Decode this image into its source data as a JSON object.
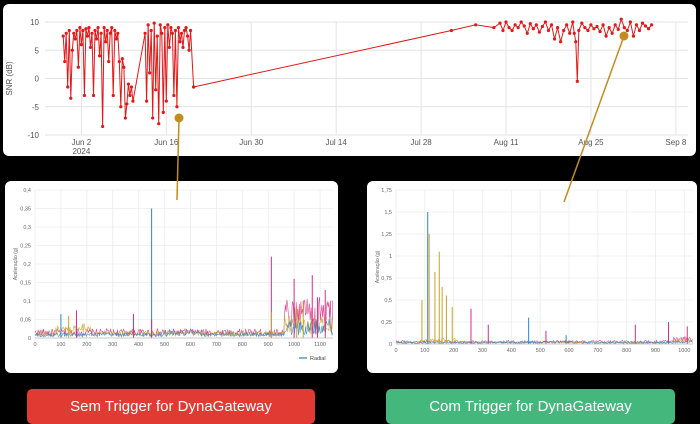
{
  "chart_data": [
    {
      "id": "snr",
      "type": "line",
      "ylabel": "SNR (dB)",
      "ylim": [
        -10,
        10
      ],
      "yticks": [
        "10",
        "5",
        "0",
        "-5",
        "-10"
      ],
      "ytick_values": [
        10,
        5,
        0,
        -5,
        -10
      ],
      "xticks": [
        {
          "label": "Jun 2",
          "sub": "2024",
          "date": "2024-06-02"
        },
        {
          "label": "Jun 16",
          "sub": "",
          "date": "2024-06-16"
        },
        {
          "label": "Jun 30",
          "sub": "",
          "date": "2024-06-30"
        },
        {
          "label": "Jul 14",
          "sub": "",
          "date": "2024-07-14"
        },
        {
          "label": "Jul 28",
          "sub": "",
          "date": "2024-07-28"
        },
        {
          "label": "Aug 11",
          "sub": "",
          "date": "2024-08-11"
        },
        {
          "label": "Aug 25",
          "sub": "",
          "date": "2024-08-25"
        },
        {
          "label": "Sep 8",
          "sub": "",
          "date": "2024-09-08"
        }
      ],
      "xlim": [
        "2024-05-27",
        "2024-09-10"
      ],
      "grid": true,
      "color": "#e11919",
      "series": [
        {
          "points": [
            [
              "2024-05-30T00:00",
              7.5
            ],
            [
              "2024-05-30T06:00",
              3
            ],
            [
              "2024-05-30T12:00",
              8
            ],
            [
              "2024-05-30T18:00",
              -1.5
            ],
            [
              "2024-05-31T00:00",
              8.5
            ],
            [
              "2024-05-31T06:00",
              -3.5
            ],
            [
              "2024-05-31T12:00",
              5
            ],
            [
              "2024-05-31T18:00",
              8
            ],
            [
              "2024-06-01T00:00",
              7
            ],
            [
              "2024-06-01T06:00",
              8.5
            ],
            [
              "2024-06-01T12:00",
              2
            ],
            [
              "2024-06-01T18:00",
              9
            ],
            [
              "2024-06-02T00:00",
              6
            ],
            [
              "2024-06-02T06:00",
              8.5
            ],
            [
              "2024-06-02T12:00",
              -3
            ],
            [
              "2024-06-02T18:00",
              8.8
            ],
            [
              "2024-06-03T00:00",
              7.5
            ],
            [
              "2024-06-03T06:00",
              9
            ],
            [
              "2024-06-03T12:00",
              5.5
            ],
            [
              "2024-06-03T18:00",
              8
            ],
            [
              "2024-06-04T00:00",
              -3
            ],
            [
              "2024-06-04T06:00",
              8.5
            ],
            [
              "2024-06-04T12:00",
              7
            ],
            [
              "2024-06-04T18:00",
              9
            ],
            [
              "2024-06-05T00:00",
              4
            ],
            [
              "2024-06-05T06:00",
              8
            ],
            [
              "2024-06-05T12:00",
              -8.5
            ],
            [
              "2024-06-05T18:00",
              9
            ],
            [
              "2024-06-06T00:00",
              6.5
            ],
            [
              "2024-06-06T06:00",
              8.5
            ],
            [
              "2024-06-06T12:00",
              3
            ],
            [
              "2024-06-06T18:00",
              8
            ],
            [
              "2024-06-07T00:00",
              9
            ],
            [
              "2024-06-07T06:00",
              -3
            ],
            [
              "2024-06-07T12:00",
              8.5
            ],
            [
              "2024-06-07T18:00",
              7
            ],
            [
              "2024-06-08T00:00",
              8
            ],
            [
              "2024-06-08T06:00",
              3
            ],
            [
              "2024-06-08T12:00",
              -5
            ],
            [
              "2024-06-08T18:00",
              3.5
            ],
            [
              "2024-06-09T00:00",
              2
            ],
            [
              "2024-06-09T06:00",
              -7
            ],
            [
              "2024-06-09T12:00",
              -4.5
            ],
            [
              "2024-06-09T18:00",
              -1
            ],
            [
              "2024-06-10T00:00",
              -3
            ],
            [
              "2024-06-10T06:00",
              -1.5
            ],
            [
              "2024-06-10T12:00",
              -4
            ],
            [
              "2024-06-12T12:00",
              8
            ],
            [
              "2024-06-12T18:00",
              -4
            ],
            [
              "2024-06-13T00:00",
              9.5
            ],
            [
              "2024-06-13T06:00",
              1
            ],
            [
              "2024-06-13T12:00",
              8.5
            ],
            [
              "2024-06-13T18:00",
              -7
            ],
            [
              "2024-06-14T00:00",
              9.8
            ],
            [
              "2024-06-14T06:00",
              -2
            ],
            [
              "2024-06-14T12:00",
              7.5
            ],
            [
              "2024-06-14T18:00",
              -8
            ],
            [
              "2024-06-15T00:00",
              9.5
            ],
            [
              "2024-06-15T06:00",
              8
            ],
            [
              "2024-06-15T12:00",
              -6
            ],
            [
              "2024-06-15T18:00",
              9
            ],
            [
              "2024-06-16T00:00",
              -4
            ],
            [
              "2024-06-16T06:00",
              9.5
            ],
            [
              "2024-06-16T12:00",
              5.5
            ],
            [
              "2024-06-16T18:00",
              9
            ],
            [
              "2024-06-17T00:00",
              8
            ],
            [
              "2024-06-17T06:00",
              -3
            ],
            [
              "2024-06-17T12:00",
              8.5
            ],
            [
              "2024-06-17T18:00",
              -5
            ],
            [
              "2024-06-18T00:00",
              9
            ],
            [
              "2024-06-18T06:00",
              6.5
            ],
            [
              "2024-06-18T12:00",
              8
            ],
            [
              "2024-06-18T18:00",
              5.5
            ],
            [
              "2024-06-19T00:00",
              8.5
            ],
            [
              "2024-06-19T06:00",
              9
            ],
            [
              "2024-06-19T12:00",
              7.5
            ],
            [
              "2024-06-19T18:00",
              5
            ],
            [
              "2024-06-20T00:00",
              8.5
            ],
            [
              "2024-06-20T12:00",
              -1.5
            ]
          ]
        },
        {
          "points": [
            [
              "2024-06-20T12:00",
              -1.5
            ],
            [
              "2024-08-02T00:00",
              8.5
            ],
            [
              "2024-08-06T00:00",
              9.5
            ],
            [
              "2024-08-09T00:00",
              9
            ],
            [
              "2024-08-10T00:00",
              9.8
            ],
            [
              "2024-08-10T12:00",
              8.5
            ],
            [
              "2024-08-11T00:00",
              10
            ],
            [
              "2024-08-11T12:00",
              9
            ],
            [
              "2024-08-12T00:00",
              8.5
            ],
            [
              "2024-08-12T12:00",
              9.5
            ],
            [
              "2024-08-13T00:00",
              9
            ],
            [
              "2024-08-13T12:00",
              10
            ],
            [
              "2024-08-14T00:00",
              9.3
            ],
            [
              "2024-08-14T12:00",
              8
            ],
            [
              "2024-08-15T00:00",
              9.7
            ],
            [
              "2024-08-15T12:00",
              8.8
            ],
            [
              "2024-08-16T00:00",
              9.5
            ],
            [
              "2024-08-16T12:00",
              8.2
            ],
            [
              "2024-08-17T00:00",
              9.2
            ],
            [
              "2024-08-17T12:00",
              10
            ],
            [
              "2024-08-18T00:00",
              8.5
            ],
            [
              "2024-08-18T12:00",
              9.5
            ],
            [
              "2024-08-19T00:00",
              7
            ],
            [
              "2024-08-19T12:00",
              9
            ],
            [
              "2024-08-20T00:00",
              6.5
            ],
            [
              "2024-08-20T12:00",
              8.5
            ],
            [
              "2024-08-21T00:00",
              9.5
            ],
            [
              "2024-08-21T12:00",
              8
            ],
            [
              "2024-08-22T00:00",
              10
            ],
            [
              "2024-08-22T06:00",
              8
            ],
            [
              "2024-08-22T12:00",
              6.5
            ],
            [
              "2024-08-22T18:00",
              -0.5
            ],
            [
              "2024-08-23T00:00",
              8.5
            ],
            [
              "2024-08-23T12:00",
              9.8
            ],
            [
              "2024-08-24T00:00",
              9
            ],
            [
              "2024-08-24T12:00",
              8.5
            ],
            [
              "2024-08-25T00:00",
              9.5
            ],
            [
              "2024-08-25T12:00",
              8.8
            ],
            [
              "2024-08-26T00:00",
              9.2
            ],
            [
              "2024-08-26T12:00",
              8.3
            ],
            [
              "2024-08-27T00:00",
              9.5
            ],
            [
              "2024-08-27T12:00",
              7.5
            ],
            [
              "2024-08-28T00:00",
              9
            ],
            [
              "2024-08-28T12:00",
              8
            ],
            [
              "2024-08-29T00:00",
              9.5
            ],
            [
              "2024-08-29T12:00",
              8.7
            ],
            [
              "2024-08-30T00:00",
              10.5
            ],
            [
              "2024-08-30T12:00",
              9
            ],
            [
              "2024-08-31T00:00",
              8.5
            ],
            [
              "2024-08-31T12:00",
              10
            ],
            [
              "2024-09-01T00:00",
              7.5
            ],
            [
              "2024-09-01T12:00",
              9.5
            ],
            [
              "2024-09-02T00:00",
              8.5
            ],
            [
              "2024-09-02T12:00",
              9.8
            ],
            [
              "2024-09-03T00:00",
              9.3
            ],
            [
              "2024-09-03T12:00",
              8.8
            ],
            [
              "2024-09-04T00:00",
              9.5
            ]
          ]
        }
      ]
    },
    {
      "id": "sem",
      "type": "line",
      "ylabel": "Aceleração (g)",
      "ylim": [
        0,
        0.4
      ],
      "yticks": [
        "0,4",
        "0,35",
        "0,3",
        "0,25",
        "0,2",
        "0,15",
        "0,1",
        "0,05",
        "0"
      ],
      "ytick_values": [
        0.4,
        0.35,
        0.3,
        0.25,
        0.2,
        0.15,
        0.1,
        0.05,
        0
      ],
      "xlim": [
        0,
        1150
      ],
      "xticks": [
        "0",
        "100",
        "200",
        "300",
        "400",
        "500",
        "600",
        "700",
        "800",
        "900",
        "1000",
        "1100"
      ],
      "xtick_values": [
        0,
        100,
        200,
        300,
        400,
        500,
        600,
        700,
        800,
        900,
        1000,
        1100
      ],
      "legend": "Radial",
      "legend_position": "bottom-right",
      "grid": true,
      "series_colors": [
        "#d62e80",
        "#caa324",
        "#2f86c7"
      ],
      "spikes": [
        {
          "series": 2,
          "x": 450,
          "y": 0.35
        },
        {
          "series": 0,
          "x": 450,
          "y": 0.05
        },
        {
          "series": 0,
          "x": 912,
          "y": 0.22
        },
        {
          "series": 1,
          "x": 912,
          "y": 0.07
        },
        {
          "series": 0,
          "x": 1000,
          "y": 0.16
        },
        {
          "series": 0,
          "x": 1070,
          "y": 0.17
        },
        {
          "series": 0,
          "x": 1120,
          "y": 0.13
        },
        {
          "series": 1,
          "x": 1035,
          "y": 0.1
        },
        {
          "series": 1,
          "x": 1010,
          "y": 0.085
        },
        {
          "series": 0,
          "x": 1090,
          "y": 0.11
        },
        {
          "series": 2,
          "x": 100,
          "y": 0.065
        },
        {
          "series": 0,
          "x": 160,
          "y": 0.075
        },
        {
          "series": 1,
          "x": 130,
          "y": 0.06
        },
        {
          "series": 0,
          "x": 380,
          "y": 0.065
        }
      ]
    },
    {
      "id": "com",
      "type": "line",
      "ylabel": "Aceleração (g)",
      "ylim": [
        0,
        1.75
      ],
      "yticks": [
        "1,75",
        "1,5",
        "1,25",
        "1",
        "0,75",
        "0,5",
        "0,25",
        "0"
      ],
      "ytick_values": [
        1.75,
        1.5,
        1.25,
        1,
        0.75,
        0.5,
        0.25,
        0
      ],
      "xlim": [
        0,
        1030
      ],
      "xticks": [
        "0",
        "100",
        "200",
        "300",
        "400",
        "500",
        "600",
        "700",
        "800",
        "900",
        "1000"
      ],
      "xtick_values": [
        0,
        100,
        200,
        300,
        400,
        500,
        600,
        700,
        800,
        900,
        1000
      ],
      "grid": true,
      "series_colors": [
        "#d62e80",
        "#caa324",
        "#2f86c7"
      ],
      "spikes": [
        {
          "series": 2,
          "x": 110,
          "y": 1.5
        },
        {
          "series": 1,
          "x": 115,
          "y": 1.25
        },
        {
          "series": 1,
          "x": 150,
          "y": 1.05
        },
        {
          "series": 1,
          "x": 135,
          "y": 0.82
        },
        {
          "series": 1,
          "x": 160,
          "y": 0.65
        },
        {
          "series": 1,
          "x": 175,
          "y": 0.55
        },
        {
          "series": 1,
          "x": 90,
          "y": 0.5
        },
        {
          "series": 1,
          "x": 195,
          "y": 0.42
        },
        {
          "series": 0,
          "x": 260,
          "y": 0.4
        },
        {
          "series": 0,
          "x": 320,
          "y": 0.22
        },
        {
          "series": 2,
          "x": 460,
          "y": 0.3
        },
        {
          "series": 0,
          "x": 520,
          "y": 0.15
        },
        {
          "series": 0,
          "x": 830,
          "y": 0.22
        },
        {
          "series": 0,
          "x": 945,
          "y": 0.25
        },
        {
          "series": 0,
          "x": 1010,
          "y": 0.2
        },
        {
          "series": 2,
          "x": 590,
          "y": 0.1
        }
      ]
    }
  ],
  "buttons": {
    "sem_label": "Sem Trigger for DynaGateway",
    "com_label": "Com Trigger for DynaGateway",
    "sem_color": "#e03a33",
    "com_color": "#43b77c"
  },
  "callout_color": "#c28d1c"
}
